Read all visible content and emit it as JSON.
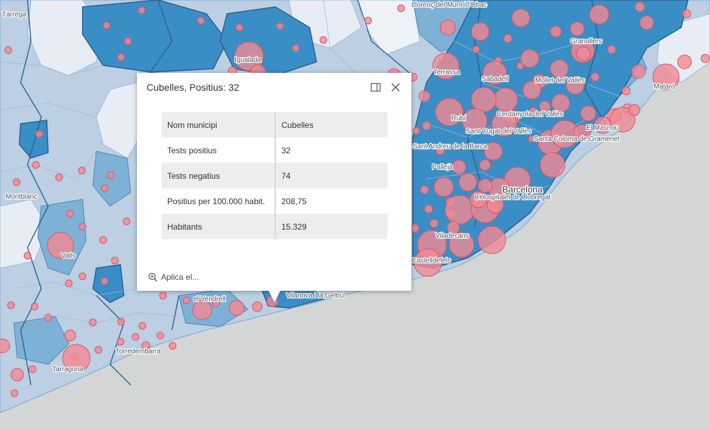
{
  "map": {
    "colors": {
      "sea": "#d4d6d6",
      "dark_blue": "#3a8ec6",
      "mid_blue": "#7eb1d6",
      "light_blue": "#bccfe3",
      "pale_blue": "#e8edf5",
      "border_dark": "#2c5f8f",
      "circle_fill": "#f28a93",
      "circle_stroke": "#d9545f"
    },
    "place_labels": [
      "Tàrrega",
      "Igualada",
      "Llorenç del Munt i l'Obac",
      "Granollers",
      "Terrassa",
      "Sabadell",
      "Mollet del Vallès",
      "Mataró",
      "Rubí",
      "Cerdanyola del Vallès",
      "Sant Cugat del Vallès",
      "El Masnou",
      "Santa Coloma de Gramenet",
      "Sant Andreu de la Barca",
      "Pallejà",
      "Barcelona",
      "L'Hospitalet de Llobregat",
      "Montblanc",
      "Valls",
      "Viladecans",
      "Castelldefels",
      "el Vendrell",
      "Vilanova i la Geltrú",
      "Torredembarra",
      "Tarragona"
    ]
  },
  "popup": {
    "title": "Cubelles, Positius: 32",
    "rows": [
      {
        "key": "Nom municipi",
        "value": "Cubelles"
      },
      {
        "key": "Tests positius",
        "value": "32"
      },
      {
        "key": "Tests negatius",
        "value": "74"
      },
      {
        "key": "Positius per 100.000 habit.",
        "value": "208,75"
      },
      {
        "key": "Habitants",
        "value": "15.329"
      }
    ],
    "zoom_label": "Aplica el..."
  }
}
